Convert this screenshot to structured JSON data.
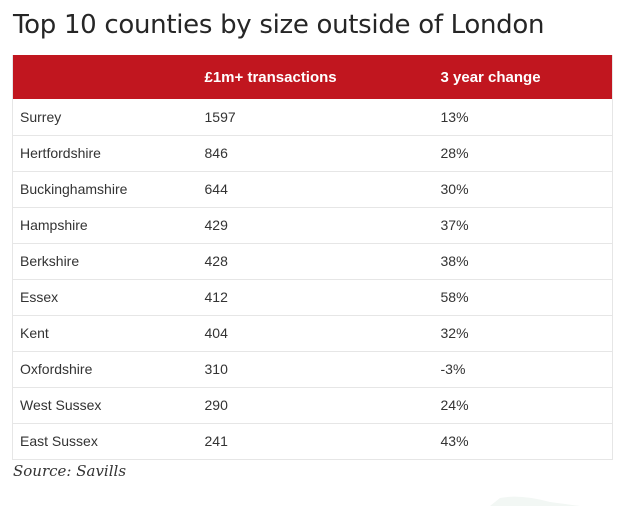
{
  "title": "Top 10 counties by size outside of London",
  "source": "Source: Savills",
  "chart_data": {
    "type": "table",
    "title": "Top 10 counties by size outside of London",
    "columns": [
      "",
      "£1m+ transactions",
      "3 year change"
    ],
    "rows": [
      {
        "county": "Surrey",
        "transactions": "1597",
        "change": "13%"
      },
      {
        "county": "Hertfordshire",
        "transactions": "846",
        "change": "28%"
      },
      {
        "county": "Buckinghamshire",
        "transactions": "644",
        "change": "30%"
      },
      {
        "county": "Hampshire",
        "transactions": "429",
        "change": "37%"
      },
      {
        "county": "Berkshire",
        "transactions": "428",
        "change": "38%"
      },
      {
        "county": "Essex",
        "transactions": "412",
        "change": "58%"
      },
      {
        "county": "Kent",
        "transactions": "404",
        "change": "32%"
      },
      {
        "county": "Oxfordshire",
        "transactions": "310",
        "change": "-3%"
      },
      {
        "county": "West Sussex",
        "transactions": "290",
        "change": "24%"
      },
      {
        "county": "East Sussex",
        "transactions": "241",
        "change": "43%"
      }
    ],
    "header_color": "#c1161f"
  }
}
